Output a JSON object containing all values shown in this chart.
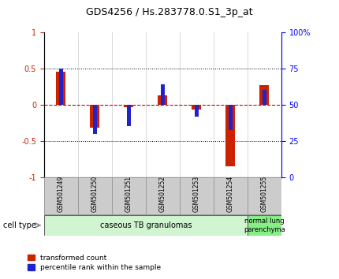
{
  "title": "GDS4256 / Hs.283778.0.S1_3p_at",
  "samples": [
    "GSM501249",
    "GSM501250",
    "GSM501251",
    "GSM501252",
    "GSM501253",
    "GSM501254",
    "GSM501255"
  ],
  "red_values": [
    0.45,
    -0.32,
    -0.03,
    0.13,
    -0.07,
    -0.85,
    0.27
  ],
  "blue_values_norm": [
    0.5,
    -0.4,
    -0.3,
    0.28,
    -0.17,
    -0.35,
    0.2
  ],
  "ylim_left": [
    -1.0,
    1.0
  ],
  "ylim_right": [
    0,
    100
  ],
  "left_yticks": [
    -1.0,
    -0.5,
    0.0,
    0.5,
    1.0
  ],
  "left_yticklabels": [
    "-1",
    "-0.5",
    "0",
    "0.5",
    "1"
  ],
  "right_yticks": [
    0,
    25,
    50,
    75,
    100
  ],
  "right_yticklabels": [
    "0",
    "25",
    "50",
    "75",
    "100%"
  ],
  "group1_indices": [
    0,
    1,
    2,
    3,
    4,
    5
  ],
  "group2_indices": [
    6
  ],
  "group1_label": "caseous TB granulomas",
  "group2_label": "normal lung\nparenchyma",
  "group1_color": "#d0f5d0",
  "group2_color": "#88ee88",
  "cell_type_label": "cell type",
  "legend_red": "transformed count",
  "legend_blue": "percentile rank within the sample",
  "red_color": "#cc2200",
  "blue_color": "#2222cc",
  "zero_line_color": "#cc0000",
  "sample_box_color": "#cccccc"
}
